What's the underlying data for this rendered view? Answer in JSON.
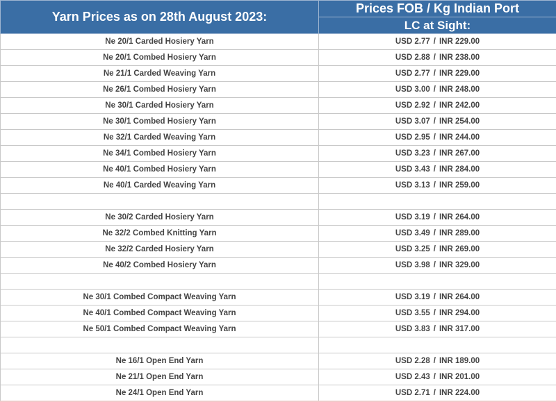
{
  "header": {
    "title": "Yarn Prices as on 28th August 2023:",
    "price_header_line1": "Prices FOB / Kg Indian Port",
    "price_header_line2": "LC at Sight:"
  },
  "rows": [
    {
      "name": "Ne 20/1 Carded Hosiery Yarn",
      "usd": "USD 2.77",
      "inr": "INR 229.00"
    },
    {
      "name": "Ne 20/1 Combed Hosiery Yarn",
      "usd": "USD 2.88",
      "inr": "INR 238.00"
    },
    {
      "name": "Ne 21/1 Carded Weaving Yarn",
      "usd": "USD 2.77",
      "inr": "INR 229.00"
    },
    {
      "name": "Ne 26/1 Combed Hosiery Yarn",
      "usd": "USD 3.00",
      "inr": "INR 248.00"
    },
    {
      "name": "Ne 30/1 Carded Hosiery Yarn",
      "usd": "USD 2.92",
      "inr": "INR 242.00"
    },
    {
      "name": "Ne 30/1 Combed Hosiery Yarn",
      "usd": "USD 3.07",
      "inr": "INR 254.00"
    },
    {
      "name": "Ne 32/1 Carded Weaving Yarn",
      "usd": "USD 2.95",
      "inr": "INR 244.00"
    },
    {
      "name": "Ne 34/1 Combed Hosiery Yarn",
      "usd": "USD 3.23",
      "inr": "INR 267.00"
    },
    {
      "name": "Ne 40/1 Combed Hosiery Yarn",
      "usd": "USD 3.43",
      "inr": "INR 284.00"
    },
    {
      "name": "Ne 40/1 Carded Weaving Yarn",
      "usd": "USD 3.13",
      "inr": "INR 259.00"
    },
    {
      "name": "",
      "usd": "",
      "inr": ""
    },
    {
      "name": "Ne 30/2 Carded Hosiery Yarn",
      "usd": "USD 3.19",
      "inr": "INR 264.00"
    },
    {
      "name": "Ne 32/2 Combed Knitting Yarn",
      "usd": "USD 3.49",
      "inr": "INR 289.00"
    },
    {
      "name": "Ne 32/2 Carded Hosiery Yarn",
      "usd": "USD 3.25",
      "inr": "INR 269.00"
    },
    {
      "name": "Ne 40/2 Combed Hosiery Yarn",
      "usd": "USD 3.98",
      "inr": "INR 329.00"
    },
    {
      "name": "",
      "usd": "",
      "inr": ""
    },
    {
      "name": "Ne 30/1 Combed Compact Weaving Yarn",
      "usd": "USD 3.19",
      "inr": "INR 264.00"
    },
    {
      "name": "Ne 40/1 Combed Compact Weaving Yarn",
      "usd": "USD 3.55",
      "inr": "INR 294.00"
    },
    {
      "name": "Ne 50/1 Combed Compact Weaving Yarn",
      "usd": "USD 3.83",
      "inr": "INR 317.00"
    },
    {
      "name": "",
      "usd": "",
      "inr": ""
    },
    {
      "name": "Ne 16/1 Open End Yarn",
      "usd": "USD 2.28",
      "inr": "INR 189.00"
    },
    {
      "name": "Ne 21/1 Open End Yarn",
      "usd": "USD 2.43",
      "inr": "INR 201.00"
    },
    {
      "name": "Ne 24/1 Open End Yarn",
      "usd": "USD 2.71",
      "inr": "INR 224.00"
    }
  ],
  "price_separator": "/",
  "colors": {
    "header_bg": "#3a6ea5",
    "header_text": "#ffffff",
    "cell_text": "#444444",
    "grid": "#c8c8c8"
  }
}
